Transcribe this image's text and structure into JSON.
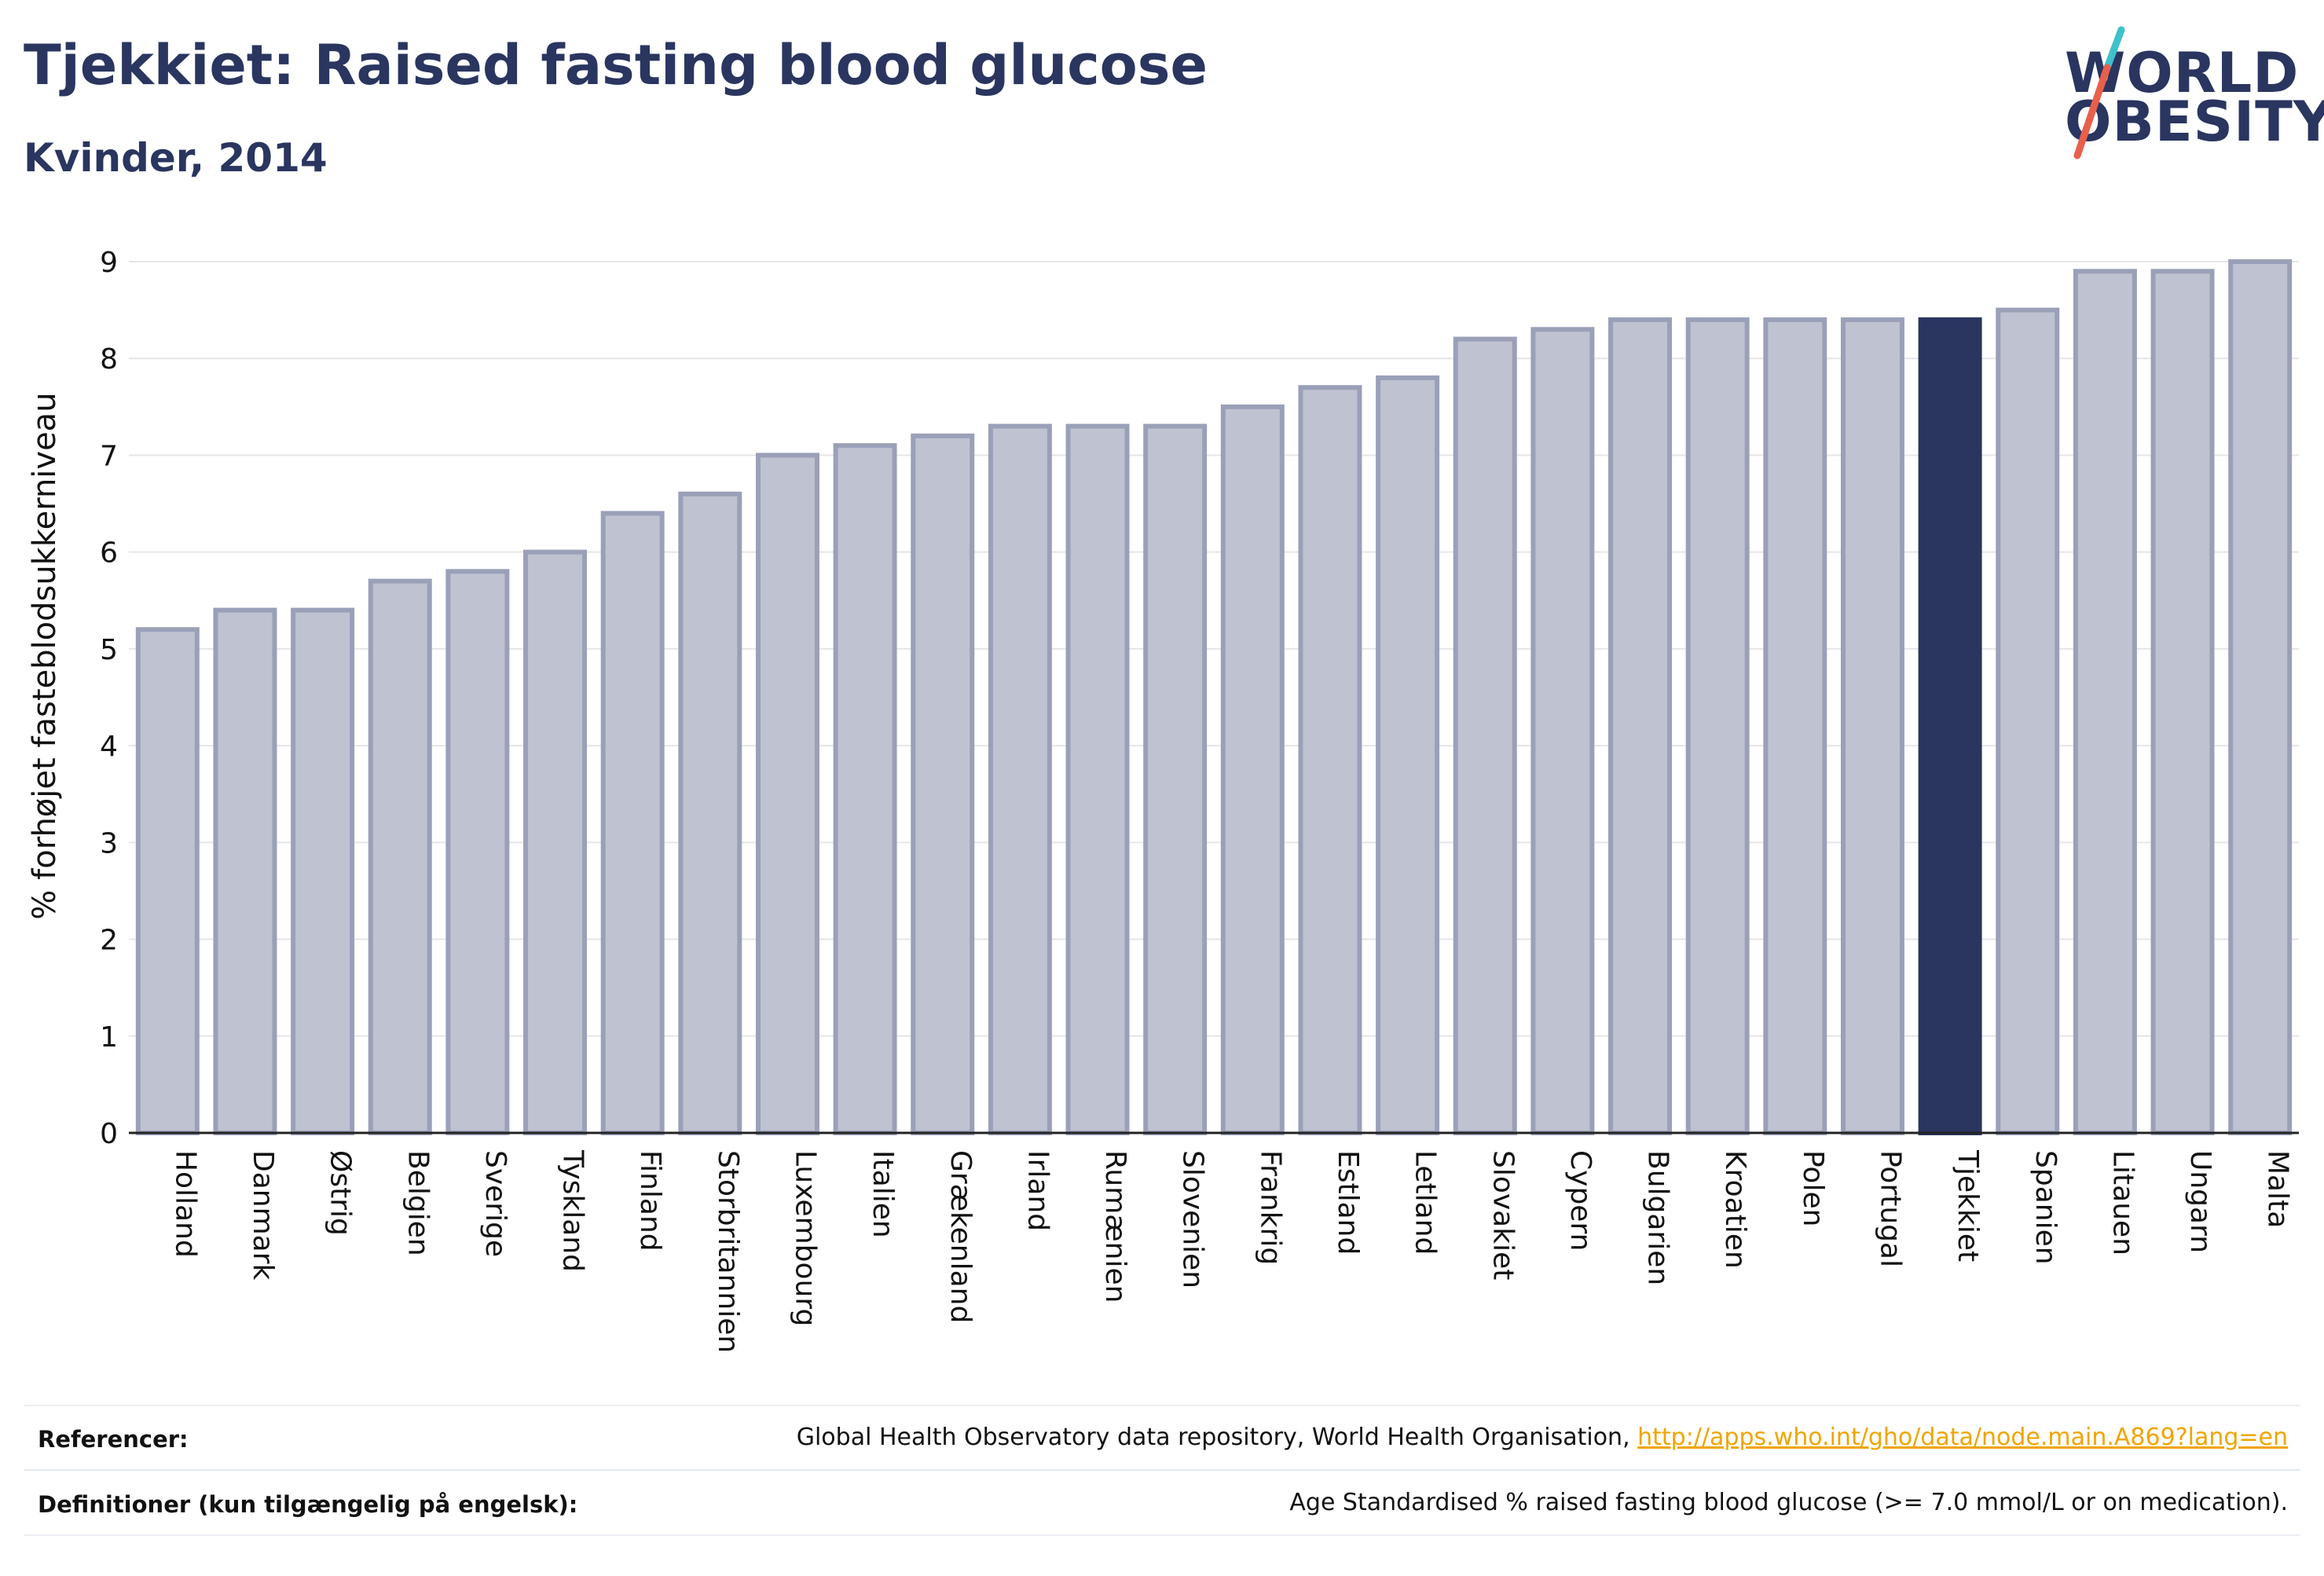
{
  "header": {
    "title": "Tjekkiet: Raised fasting blood glucose",
    "subtitle": "Kvinder, 2014"
  },
  "logo": {
    "line1": "WORLD",
    "line2": "OBESITY",
    "accent_colors": [
      "#3fc1c9",
      "#e8604c"
    ]
  },
  "colors": {
    "bar_default": "#bfc2d0",
    "bar_border": "#9aa0b8",
    "bar_highlight": "#2a3560",
    "text": "#2a3560",
    "link": "#f0a500",
    "grid": "#e6e6e6"
  },
  "chart_data": {
    "type": "bar",
    "title": "Tjekkiet: Raised fasting blood glucose",
    "subtitle": "Kvinder, 2014",
    "xlabel": "",
    "ylabel": "% forhøjet fasteblodsukkerniveau",
    "ylim": [
      0,
      9
    ],
    "yticks": [
      0,
      1,
      2,
      3,
      4,
      5,
      6,
      7,
      8,
      9
    ],
    "grid": true,
    "highlight": "Tjekkiet",
    "categories": [
      "Holland",
      "Danmark",
      "Østrig",
      "Belgien",
      "Sverige",
      "Tyskland",
      "Finland",
      "Storbritannien",
      "Luxembourg",
      "Italien",
      "Grækenland",
      "Irland",
      "Rumænien",
      "Slovenien",
      "Frankrig",
      "Estland",
      "Letland",
      "Slovakiet",
      "Cypern",
      "Bulgarien",
      "Kroatien",
      "Polen",
      "Portugal",
      "Tjekkiet",
      "Spanien",
      "Litauen",
      "Ungarn",
      "Malta"
    ],
    "values": [
      5.2,
      5.4,
      5.4,
      5.7,
      5.8,
      6.0,
      6.4,
      6.6,
      7.0,
      7.1,
      7.2,
      7.3,
      7.3,
      7.3,
      7.5,
      7.7,
      7.8,
      8.2,
      8.3,
      8.4,
      8.4,
      8.4,
      8.4,
      8.4,
      8.5,
      8.9,
      8.9,
      9.0
    ]
  },
  "footer": {
    "references_label": "Referencer:",
    "references_text": "Global Health Observatory data repository, World Health Organisation, ",
    "references_link": "http://apps.who.int/gho/data/node.main.A869?lang=en",
    "definitions_label": "Definitioner (kun tilgængelig på engelsk):",
    "definitions_text": "Age Standardised % raised fasting blood glucose (>= 7.0 mmol/L or on medication)."
  }
}
